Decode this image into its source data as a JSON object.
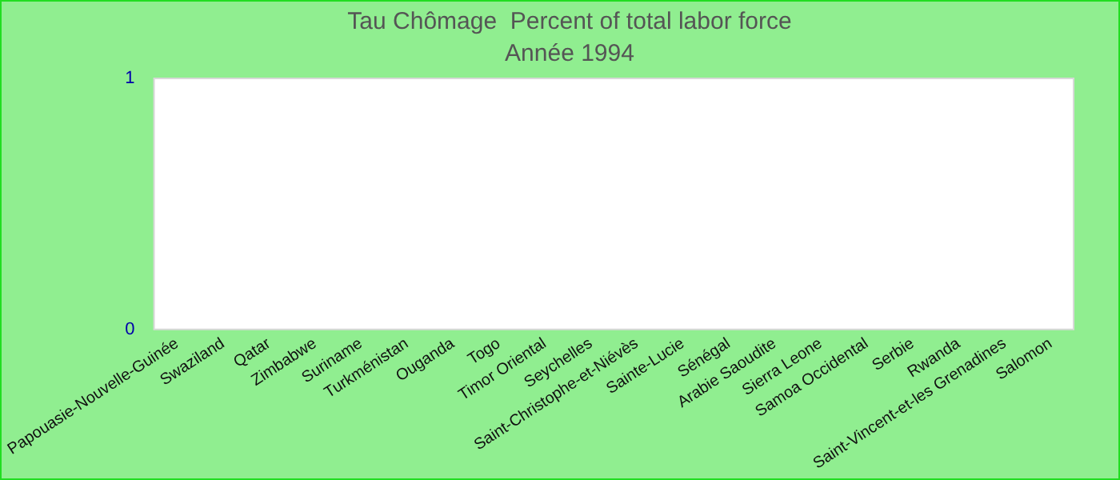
{
  "chart_data": {
    "type": "bar",
    "title": "Tau Chômage  Percent of total labor force",
    "subtitle": "Année 1994",
    "categories": [
      "Papouasie-Nouvelle-Guinée",
      "Swaziland",
      "Qatar",
      "Zimbabwe",
      "Suriname",
      "Turkménistan",
      "Ouganda",
      "Togo",
      "Timor Oriental",
      "Seychelles",
      "Saint-Christophe-et-Niévès",
      "Sainte-Lucie",
      "Sénégal",
      "Arabie Saoudite",
      "Sierra Leone",
      "Samoa Occidental",
      "Serbie",
      "Rwanda",
      "Saint-Vincent-et-les Grenadines",
      "Salomon"
    ],
    "values": [
      null,
      null,
      null,
      null,
      null,
      null,
      null,
      null,
      null,
      null,
      null,
      null,
      null,
      null,
      null,
      null,
      null,
      null,
      null,
      null
    ],
    "ylim": [
      0,
      1
    ],
    "yticks": [
      0,
      1
    ],
    "grid": false,
    "legend": false
  }
}
